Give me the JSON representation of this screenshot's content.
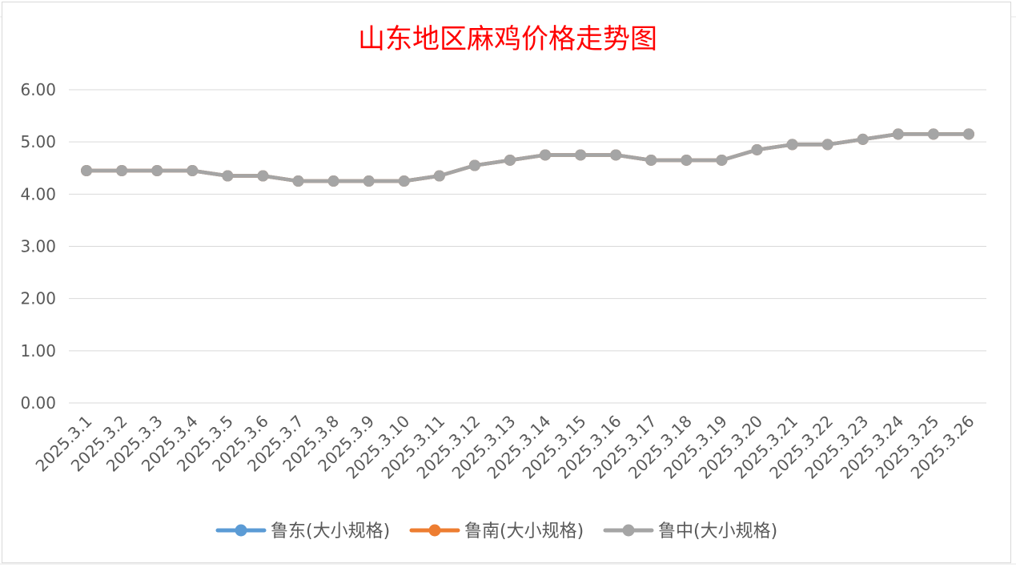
{
  "chart_data": {
    "type": "line",
    "title": "山东地区麻鸡价格走势图",
    "xlabel": "",
    "ylabel": "",
    "ylim": [
      0,
      6
    ],
    "yticks": [
      "0.00",
      "1.00",
      "2.00",
      "3.00",
      "4.00",
      "5.00",
      "6.00"
    ],
    "grid": true,
    "legend_position": "bottom",
    "categories": [
      "2025.3.1",
      "2025.3.2",
      "2025.3.3",
      "2025.3.4",
      "2025.3.5",
      "2025.3.6",
      "2025.3.7",
      "2025.3.8",
      "2025.3.9",
      "2025.3.10",
      "2025.3.11",
      "2025.3.12",
      "2025.3.13",
      "2025.3.14",
      "2025.3.15",
      "2025.3.16",
      "2025.3.17",
      "2025.3.18",
      "2025.3.19",
      "2025.3.20",
      "2025.3.21",
      "2025.3.22",
      "2025.3.23",
      "2025.3.24",
      "2025.3.25",
      "2025.3.26"
    ],
    "series": [
      {
        "name": "鲁东(大小规格)",
        "color": "#5b9bd5",
        "values": [
          4.45,
          4.45,
          4.45,
          4.45,
          4.35,
          4.35,
          4.25,
          4.25,
          4.25,
          4.25,
          4.35,
          4.55,
          4.65,
          4.75,
          4.75,
          4.75,
          4.65,
          4.65,
          4.65,
          4.85,
          4.95,
          4.95,
          5.05,
          5.15,
          5.15,
          5.15
        ]
      },
      {
        "name": "鲁南(大小规格)",
        "color": "#ed7d31",
        "values": [
          4.45,
          4.45,
          4.45,
          4.45,
          4.35,
          4.35,
          4.25,
          4.25,
          4.25,
          4.25,
          4.35,
          4.55,
          4.65,
          4.75,
          4.75,
          4.75,
          4.65,
          4.65,
          4.65,
          4.85,
          4.95,
          4.95,
          5.05,
          5.15,
          5.15,
          5.15
        ]
      },
      {
        "name": "鲁中(大小规格)",
        "color": "#a5a5a5",
        "values": [
          4.45,
          4.45,
          4.45,
          4.45,
          4.35,
          4.35,
          4.25,
          4.25,
          4.25,
          4.25,
          4.35,
          4.55,
          4.65,
          4.75,
          4.75,
          4.75,
          4.65,
          4.65,
          4.65,
          4.85,
          4.95,
          4.95,
          5.05,
          5.15,
          5.15,
          5.15
        ]
      }
    ]
  }
}
